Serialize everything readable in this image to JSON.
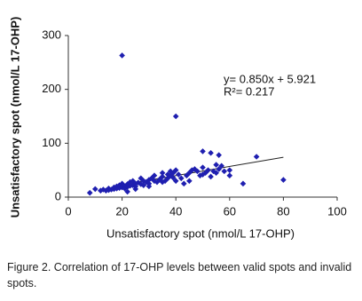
{
  "chart_data": {
    "type": "scatter",
    "x_label": "Unsatisfactory spot (nmol/L 17-OHP)",
    "y_label": "Unsatisfactory spot (nmol/L 17-OHP)",
    "caption": "Figure 2. Correlation of 17-OHP levels between valid spots and invalid spots.",
    "color": "#1f1fb0",
    "x": [
      8,
      10,
      12,
      13,
      14,
      15,
      15,
      16,
      17,
      17,
      18,
      18,
      19,
      19,
      20,
      20,
      21,
      21,
      22,
      22,
      23,
      23,
      24,
      24,
      25,
      25,
      26,
      27,
      27,
      28,
      28,
      29,
      30,
      30,
      31,
      32,
      32,
      33,
      34,
      35,
      35,
      36,
      37,
      37,
      38,
      38,
      39,
      39,
      40,
      40,
      41,
      42,
      43,
      44,
      45,
      46,
      47,
      48,
      49,
      50,
      50,
      51,
      52,
      53,
      54,
      55,
      55,
      56,
      57,
      58,
      60,
      60,
      65,
      70,
      80,
      20,
      40,
      50,
      53,
      56,
      22,
      25,
      30,
      35,
      45
    ],
    "y": [
      8,
      15,
      12,
      14,
      12,
      16,
      13,
      14,
      18,
      15,
      20,
      16,
      17,
      22,
      18,
      25,
      20,
      16,
      24,
      19,
      28,
      21,
      22,
      30,
      25,
      20,
      27,
      35,
      24,
      30,
      22,
      28,
      32,
      25,
      35,
      30,
      40,
      28,
      33,
      45,
      38,
      30,
      42,
      35,
      48,
      40,
      45,
      36,
      50,
      30,
      42,
      35,
      25,
      40,
      45,
      50,
      52,
      48,
      40,
      42,
      55,
      45,
      50,
      38,
      48,
      60,
      45,
      52,
      58,
      48,
      40,
      50,
      25,
      75,
      32,
      263,
      150,
      85,
      82,
      78,
      10,
      15,
      20,
      28,
      30
    ],
    "trendline": {
      "slope": 0.85,
      "intercept": 5.921,
      "x_range": [
        17,
        80
      ],
      "equation": "y= 0.850x + 5.921",
      "r2": "R²= 0.217"
    },
    "xlim": [
      0,
      100
    ],
    "xticks": [
      0,
      20,
      40,
      60,
      80,
      100
    ],
    "ylim": [
      0,
      300
    ],
    "yticks": [
      0,
      100,
      200,
      300
    ]
  }
}
